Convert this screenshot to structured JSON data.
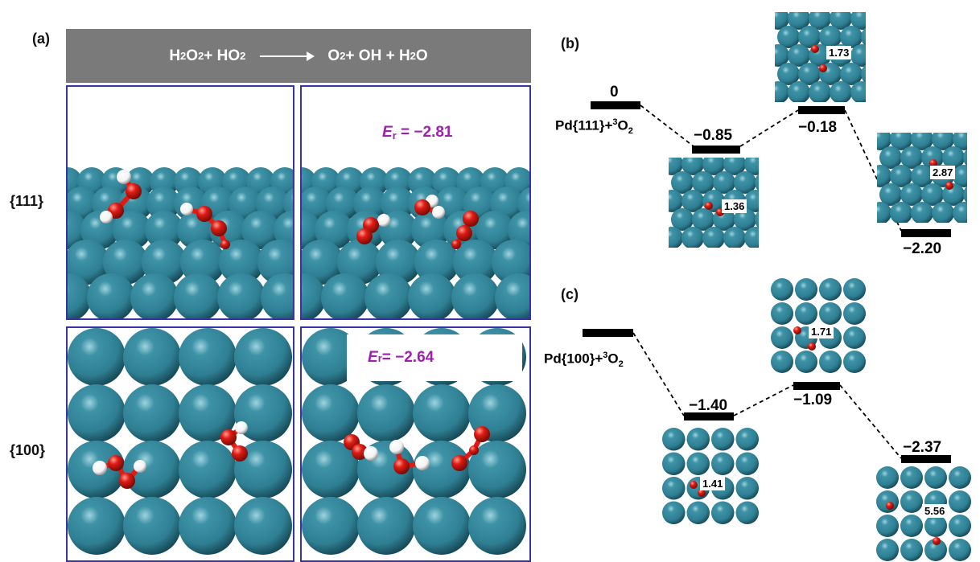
{
  "panel_a": {
    "label": "(a)",
    "reaction": {
      "lhs": "H",
      "lhs2": "O",
      "lhs3": " + HO",
      "rhs": "O",
      "rhs2": " + OH + H",
      "rhs3": "O"
    },
    "facets": [
      "{111}",
      "{100}"
    ],
    "er_111": "E",
    "er_111_sub": "r",
    "er_111_val": " = −2.81",
    "er_100": "E",
    "er_100_sub": "r",
    "er_100_val": " = −2.64"
  },
  "panel_b": {
    "label": "(b)",
    "reference": {
      "pre": "Pd{111}+",
      "sup": "3",
      "mid": "O",
      "sub": "2"
    },
    "energies": [
      "0",
      "−0.85",
      "−0.18",
      "−2.20"
    ],
    "distances": [
      "1.36",
      "1.73",
      "2.87"
    ]
  },
  "panel_c": {
    "label": "(c)",
    "reference": {
      "pre": "Pd{100}+",
      "sup": "3",
      "mid": "O",
      "sub": "2"
    },
    "energies": [
      "−1.40",
      "−1.09",
      "−2.37"
    ],
    "distances": [
      "1.41",
      "1.71",
      "5.56"
    ]
  },
  "colors": {
    "pd": "#2f7f93",
    "oxygen": "#e01b14",
    "hydrogen": "#f2f2f2",
    "frame": "#3535a8",
    "banner": "#7a7a7a",
    "er": "#a01fb0"
  }
}
